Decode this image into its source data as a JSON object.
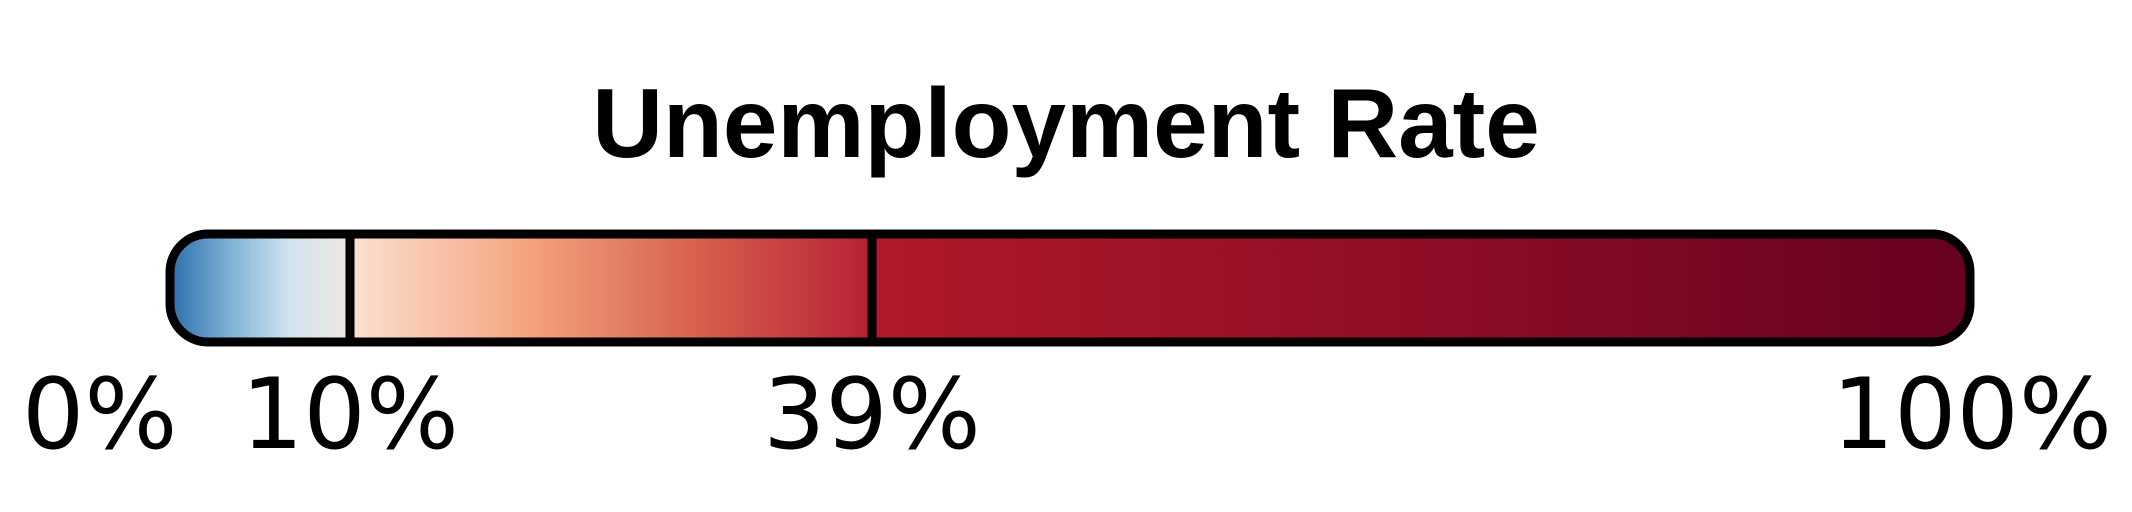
{
  "chart_data": {
    "type": "color-legend",
    "title": "Unemployment Rate",
    "range": [
      0,
      100
    ],
    "unit": "%",
    "breakpoints": [
      {
        "value": 0,
        "label": "0%"
      },
      {
        "value": 10,
        "label": "10%"
      },
      {
        "value": 39,
        "label": "39%"
      },
      {
        "value": 100,
        "label": "100%"
      }
    ],
    "segments": [
      {
        "from": 0,
        "to": 10,
        "colors": [
          "#2b6fad",
          "#7fb0d4",
          "#d2e5f0",
          "#f0e6e1"
        ]
      },
      {
        "from": 10,
        "to": 39,
        "colors": [
          "#fde0d0",
          "#f4a582",
          "#d6604d",
          "#b82034"
        ]
      },
      {
        "from": 39,
        "to": 100,
        "colors": [
          "#b2182b",
          "#8e0e26",
          "#67001f"
        ]
      }
    ],
    "outline_color": "#000000"
  }
}
